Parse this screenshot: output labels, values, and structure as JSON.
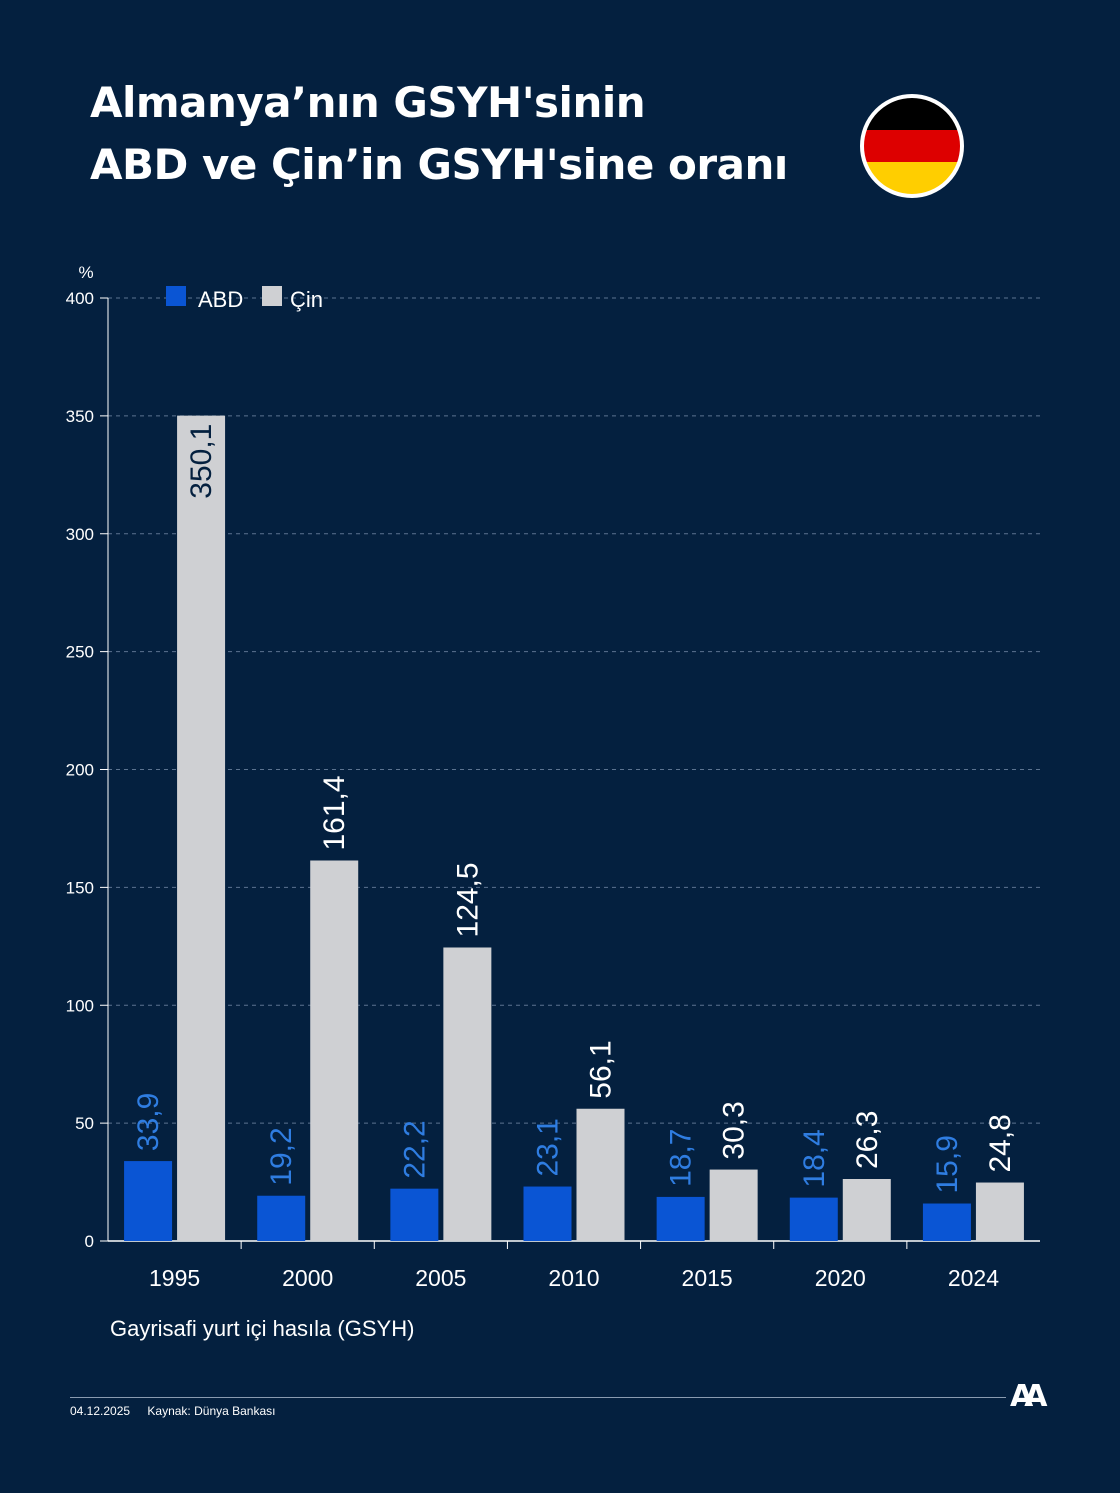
{
  "title": {
    "line1": "Almanya’nın GSYH'sinin",
    "line2": "ABD ve Çin’in GSYH'sine oranı"
  },
  "flag_icon": "germany-flag-icon",
  "colors": {
    "background": "#04203f",
    "abd": "#0a55d4",
    "cin": "#cfd0d3",
    "abd_label": "#2f7de1",
    "cin_label": "#ffffff",
    "grid": "#5c7390"
  },
  "chart_data": {
    "type": "bar",
    "categories": [
      "1995",
      "2000",
      "2005",
      "2010",
      "2015",
      "2020",
      "2024"
    ],
    "series": [
      {
        "name": "ABD",
        "values": [
          33.9,
          19.2,
          22.2,
          23.1,
          18.7,
          18.4,
          15.9
        ],
        "labels": [
          "33,9",
          "19,2",
          "22,2",
          "23,1",
          "18,7",
          "18,4",
          "15,9"
        ]
      },
      {
        "name": "Çin",
        "values": [
          350.1,
          161.4,
          124.5,
          56.1,
          30.3,
          26.3,
          24.8
        ],
        "labels": [
          "350,1",
          "161,4",
          "124,5",
          "56,1",
          "30,3",
          "26,3",
          "24,8"
        ]
      }
    ],
    "yunit": "%",
    "ylim": [
      0,
      400
    ],
    "yticks": [
      0,
      50,
      100,
      150,
      200,
      250,
      300,
      350,
      400
    ],
    "xlabel": "Gayrisafi yurt içi hasıla (GSYH)",
    "legend_position": "top-left",
    "grid": true
  },
  "footer": {
    "date": "04.12.2025",
    "source": "Kaynak: Dünya Bankası"
  },
  "logo_text": "AA"
}
